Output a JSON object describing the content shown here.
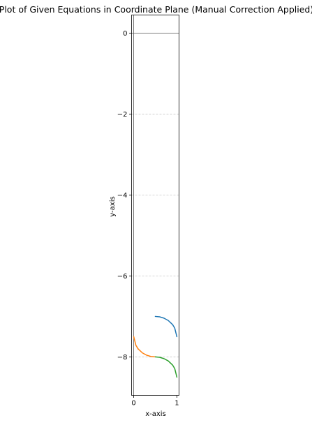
{
  "chart_data": {
    "type": "line",
    "title": "Plot of Given Equations in Coordinate Plane (Manual Correction Applied)",
    "xlabel": "x-axis",
    "ylabel": "y-axis",
    "xlim": [
      -0.05,
      1.05
    ],
    "ylim": [
      -8.95,
      0.45
    ],
    "xticks": [
      0,
      1
    ],
    "xtick_labels": [
      "0",
      "1"
    ],
    "yticks": [
      0,
      -2,
      -4,
      -6,
      -8
    ],
    "ytick_labels": [
      "0",
      "−2",
      "−4",
      "−6",
      "−8"
    ],
    "grid": "dashed (y only)",
    "legend": "none",
    "reference_line": {
      "y": 0
    },
    "series": [
      {
        "color": "#1f77b4",
        "x": [
          0.5,
          0.6,
          0.7,
          0.8,
          0.9,
          0.95,
          1.0
        ],
        "y": [
          -7.0,
          -7.01,
          -7.042,
          -7.1,
          -7.2,
          -7.288,
          -7.5
        ]
      },
      {
        "color": "#ff7f0e",
        "x": [
          0.0,
          0.05,
          0.1,
          0.2,
          0.3,
          0.4,
          0.5
        ],
        "y": [
          -7.5,
          -7.712,
          -7.8,
          -7.9,
          -7.958,
          -7.99,
          -8.0
        ]
      },
      {
        "color": "#2ca02c",
        "x": [
          0.5,
          0.6,
          0.7,
          0.8,
          0.9,
          0.95,
          1.0
        ],
        "y": [
          -8.0,
          -8.01,
          -8.042,
          -8.1,
          -8.2,
          -8.288,
          -8.5
        ]
      }
    ]
  }
}
